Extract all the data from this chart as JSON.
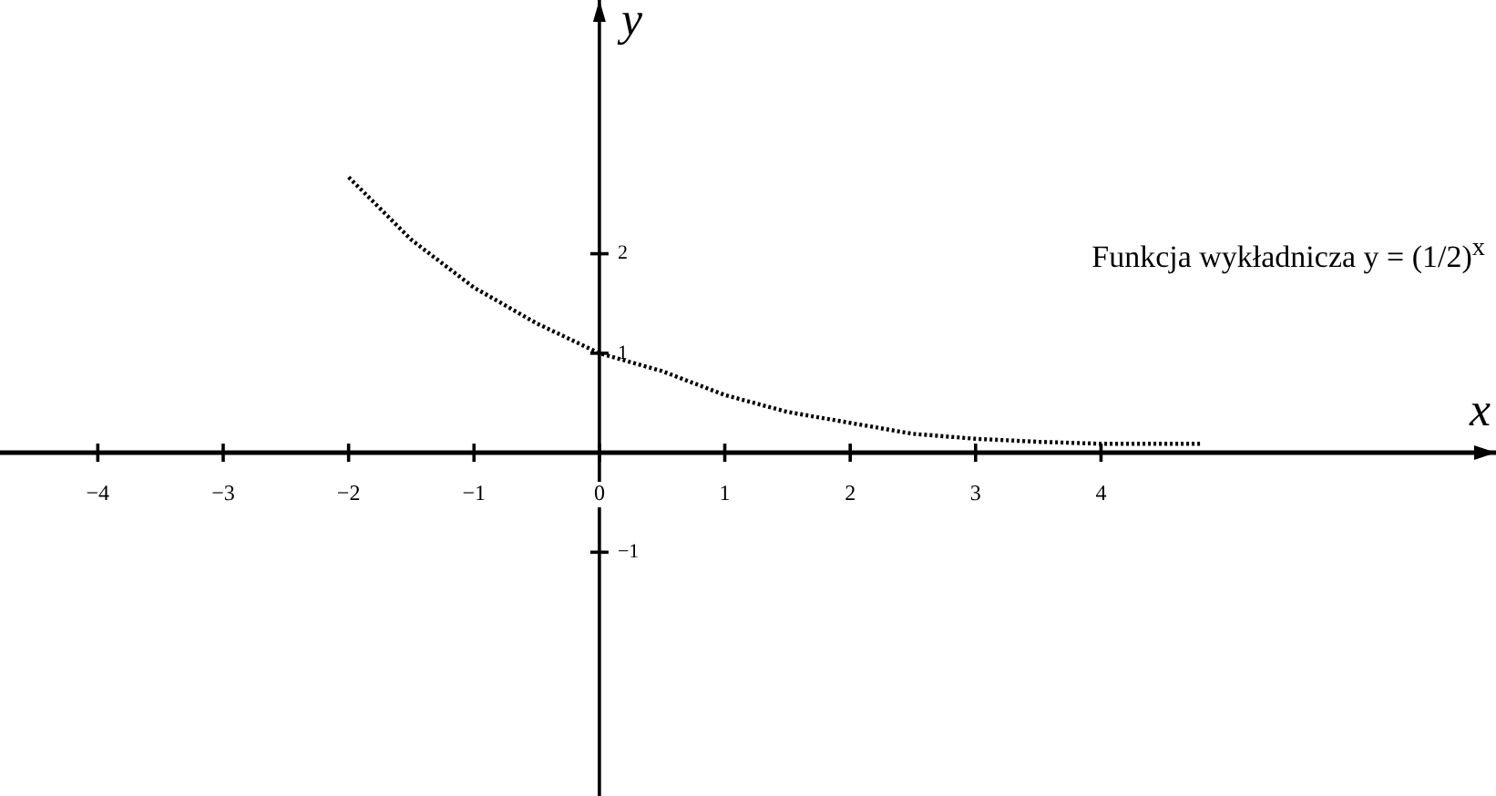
{
  "chart_data": {
    "type": "line",
    "xlabel": "x",
    "ylabel": "y",
    "x": [
      -2,
      -1.5,
      -1,
      -0.5,
      0,
      0.5,
      1,
      1.5,
      2,
      2.5,
      3,
      3.5,
      4,
      4.8
    ],
    "series": [
      {
        "color": "#000000",
        "values": [
          2.77,
          2.14,
          1.66,
          1.3,
          1.0,
          0.82,
          0.58,
          0.41,
          0.3,
          0.19,
          0.14,
          0.11,
          0.09,
          0.09
        ]
      }
    ],
    "xlim": [
      -4.78,
      7.15
    ],
    "ylim": [
      -3.45,
      4.55
    ],
    "xticks": [
      -4,
      -3,
      -2,
      -1,
      0,
      1,
      2,
      3,
      4
    ],
    "yticks": [
      -1,
      1,
      2
    ],
    "line_style": "dotted",
    "marker": "none",
    "grid": false,
    "legend": false,
    "annotations": [
      "Funkcja wykładnicza y = (1/2)$^{x}$"
    ]
  }
}
